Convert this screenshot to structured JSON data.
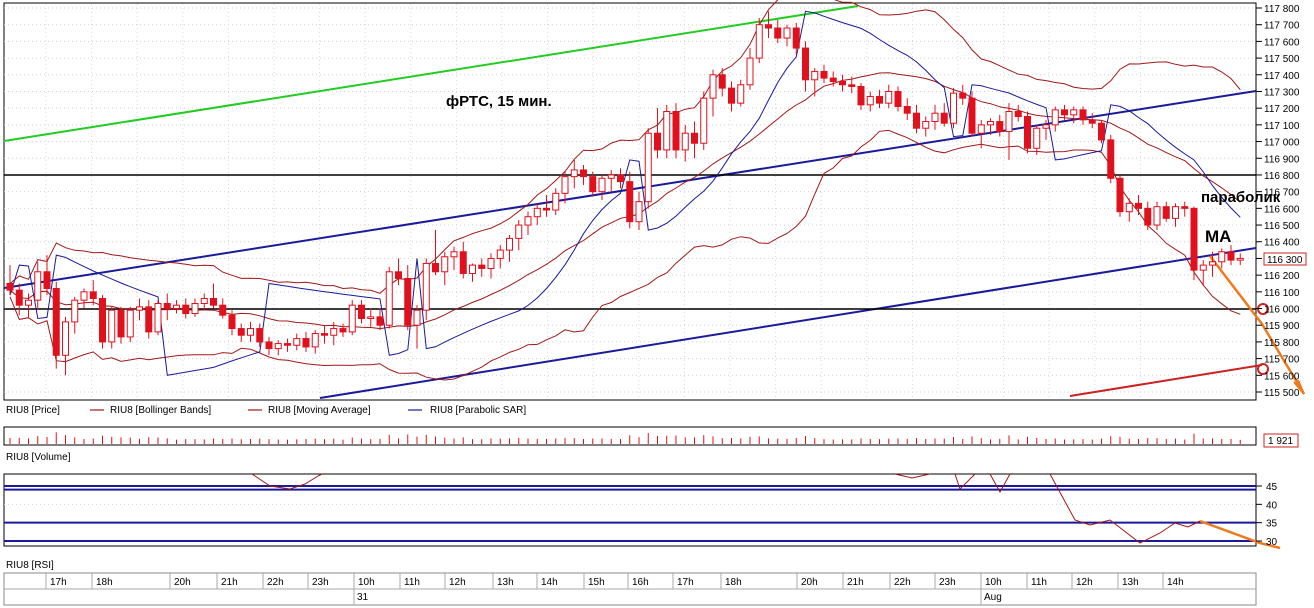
{
  "chart_data": [
    {
      "type": "candlestick",
      "annotations": {
        "title": "фРТС, 15 мин.",
        "sar_label": "параболик",
        "ma_label": "МА"
      },
      "legend": [
        {
          "name": "RIU8 [Price]",
          "color": "#e0101c"
        },
        {
          "name": "RIU8 [Bollinger Bands]",
          "color": "#a01818"
        },
        {
          "name": "RIU8 [Moving Average]",
          "color": "#a01818"
        },
        {
          "name": "RIU8 [Parabolic SAR]",
          "color": "#1a1a9a"
        }
      ],
      "y_axis": {
        "ticks": [
          "117 800",
          "117 700",
          "117 600",
          "117 500",
          "117 400",
          "117 300",
          "117 200",
          "117 100",
          "117 000",
          "116 900",
          "116 800",
          "116 700",
          "116 600",
          "116 500",
          "116 400",
          "116 300",
          "116 200",
          "116 100",
          "116 000",
          "115 900",
          "115 800",
          "115 700",
          "115 600",
          "115 500"
        ],
        "ylim": [
          115500,
          117800
        ],
        "last_price": "116 300"
      },
      "horizontal_levels": [
        116800,
        116000
      ],
      "candles": [
        [
          116150,
          116260,
          116080,
          116110
        ],
        [
          116110,
          116150,
          115960,
          116020
        ],
        [
          116020,
          116090,
          115940,
          116050
        ],
        [
          116050,
          116280,
          115990,
          116220
        ],
        [
          116220,
          116320,
          116080,
          116120
        ],
        [
          116120,
          116160,
          115640,
          115720
        ],
        [
          115720,
          115950,
          115600,
          115920
        ],
        [
          115920,
          116070,
          115850,
          116050
        ],
        [
          116050,
          116120,
          116000,
          116100
        ],
        [
          116100,
          116170,
          116020,
          116060
        ],
        [
          116060,
          116080,
          115760,
          115800
        ],
        [
          115800,
          116010,
          115760,
          115990
        ],
        [
          115990,
          116010,
          115790,
          115830
        ],
        [
          115830,
          116010,
          115800,
          115990
        ],
        [
          115990,
          116060,
          115930,
          116010
        ],
        [
          116010,
          116050,
          115820,
          115860
        ],
        [
          115860,
          116050,
          115840,
          116030
        ],
        [
          116030,
          116090,
          115930,
          116000
        ],
        [
          116000,
          116050,
          115970,
          116020
        ],
        [
          116020,
          116060,
          115940,
          115970
        ],
        [
          115970,
          116060,
          115950,
          116030
        ],
        [
          116030,
          116090,
          115990,
          116060
        ],
        [
          116060,
          116150,
          116000,
          116020
        ],
        [
          116020,
          116060,
          115940,
          115960
        ],
        [
          115960,
          115990,
          115840,
          115880
        ],
        [
          115880,
          115910,
          115800,
          115840
        ],
        [
          115840,
          115920,
          115800,
          115880
        ],
        [
          115880,
          115910,
          115770,
          115800
        ],
        [
          115800,
          115830,
          115720,
          115760
        ],
        [
          115760,
          115810,
          115720,
          115790
        ],
        [
          115790,
          115820,
          115740,
          115780
        ],
        [
          115780,
          115850,
          115750,
          115820
        ],
        [
          115820,
          115860,
          115740,
          115770
        ],
        [
          115770,
          115870,
          115730,
          115850
        ],
        [
          115850,
          115900,
          115790,
          115840
        ],
        [
          115840,
          115920,
          115780,
          115880
        ],
        [
          115880,
          115910,
          115830,
          115860
        ],
        [
          115860,
          116050,
          115840,
          116020
        ],
        [
          116020,
          116050,
          115910,
          115940
        ],
        [
          115940,
          116000,
          115890,
          115950
        ],
        [
          115950,
          116000,
          115870,
          115900
        ],
        [
          115900,
          116250,
          115880,
          116220
        ],
        [
          116220,
          116300,
          116140,
          116180
        ],
        [
          116180,
          116260,
          115870,
          115900
        ],
        [
          115900,
          116020,
          115760,
          115990
        ],
        [
          115990,
          116300,
          115930,
          116270
        ],
        [
          116270,
          116470,
          116200,
          116220
        ],
        [
          116220,
          116340,
          116140,
          116310
        ],
        [
          116310,
          116370,
          116230,
          116340
        ],
        [
          116340,
          116400,
          116180,
          116210
        ],
        [
          116210,
          116270,
          116160,
          116260
        ],
        [
          116260,
          116300,
          116190,
          116240
        ],
        [
          116240,
          116330,
          116180,
          116300
        ],
        [
          116300,
          116380,
          116240,
          116350
        ],
        [
          116350,
          116440,
          116280,
          116420
        ],
        [
          116420,
          116530,
          116350,
          116500
        ],
        [
          116500,
          116580,
          116440,
          116550
        ],
        [
          116550,
          116630,
          116500,
          116600
        ],
        [
          116600,
          116680,
          116550,
          116590
        ],
        [
          116590,
          116720,
          116560,
          116690
        ],
        [
          116690,
          116820,
          116630,
          116790
        ],
        [
          116790,
          116890,
          116720,
          116830
        ],
        [
          116830,
          116860,
          116740,
          116790
        ],
        [
          116790,
          116820,
          116670,
          116700
        ],
        [
          116700,
          116800,
          116650,
          116780
        ],
        [
          116780,
          116830,
          116700,
          116800
        ],
        [
          116800,
          116840,
          116720,
          116760
        ],
        [
          116760,
          116820,
          116480,
          116520
        ],
        [
          116520,
          116700,
          116470,
          116640
        ],
        [
          116640,
          117080,
          116600,
          117050
        ],
        [
          117050,
          117200,
          116900,
          116950
        ],
        [
          116950,
          117220,
          116900,
          117180
        ],
        [
          117180,
          117230,
          116900,
          116950
        ],
        [
          116950,
          117100,
          116880,
          117050
        ],
        [
          117050,
          117120,
          116900,
          116990
        ],
        [
          116990,
          117300,
          116950,
          117260
        ],
        [
          117260,
          117430,
          117150,
          117400
        ],
        [
          117400,
          117440,
          117270,
          117320
        ],
        [
          117320,
          117360,
          117180,
          117230
        ],
        [
          117230,
          117370,
          117210,
          117340
        ],
        [
          117340,
          117560,
          117310,
          117500
        ],
        [
          117500,
          117740,
          117470,
          117700
        ],
        [
          117700,
          117780,
          117620,
          117680
        ],
        [
          117680,
          117730,
          117590,
          117620
        ],
        [
          117620,
          117700,
          117570,
          117680
        ],
        [
          117680,
          117710,
          117520,
          117560
        ],
        [
          117560,
          117600,
          117300,
          117370
        ],
        [
          117370,
          117440,
          117270,
          117420
        ],
        [
          117420,
          117460,
          117350,
          117380
        ],
        [
          117380,
          117420,
          117330,
          117360
        ],
        [
          117360,
          117400,
          117300,
          117340
        ],
        [
          117340,
          117390,
          117290,
          117330
        ],
        [
          117330,
          117350,
          117190,
          117220
        ],
        [
          117220,
          117300,
          117180,
          117270
        ],
        [
          117270,
          117310,
          117200,
          117230
        ],
        [
          117230,
          117340,
          117200,
          117300
        ],
        [
          117300,
          117330,
          117180,
          117210
        ],
        [
          117210,
          117260,
          117130,
          117170
        ],
        [
          117170,
          117220,
          117050,
          117080
        ],
        [
          117080,
          117150,
          117030,
          117120
        ],
        [
          117120,
          117220,
          117070,
          117170
        ],
        [
          117170,
          117230,
          117090,
          117110
        ],
        [
          117110,
          117320,
          117080,
          117290
        ],
        [
          117290,
          117340,
          117220,
          117260
        ],
        [
          117260,
          117300,
          117030,
          117050
        ],
        [
          117050,
          117130,
          116960,
          117100
        ],
        [
          117100,
          117140,
          117040,
          117120
        ],
        [
          117120,
          117160,
          117030,
          117060
        ],
        [
          117060,
          117230,
          116890,
          117180
        ],
        [
          117180,
          117220,
          117120,
          117150
        ],
        [
          117150,
          117180,
          116930,
          116960
        ],
        [
          116960,
          117100,
          116920,
          117080
        ],
        [
          117080,
          117130,
          117010,
          117100
        ],
        [
          117100,
          117210,
          117060,
          117190
        ],
        [
          117190,
          117220,
          117130,
          117160
        ],
        [
          117160,
          117210,
          117110,
          117190
        ],
        [
          117190,
          117210,
          117100,
          117130
        ],
        [
          117130,
          117170,
          117080,
          117110
        ],
        [
          117110,
          117130,
          116990,
          117010
        ],
        [
          117010,
          117040,
          116750,
          116780
        ],
        [
          116780,
          116800,
          116550,
          116580
        ],
        [
          116580,
          116660,
          116520,
          116630
        ],
        [
          116630,
          116680,
          116560,
          116600
        ],
        [
          116600,
          116640,
          116470,
          116500
        ],
        [
          116500,
          116640,
          116470,
          116610
        ],
        [
          116610,
          116640,
          116520,
          116540
        ],
        [
          116540,
          116630,
          116490,
          116610
        ],
        [
          116610,
          116640,
          116550,
          116600
        ],
        [
          116600,
          116610,
          116170,
          116230
        ],
        [
          116230,
          116290,
          116140,
          116260
        ],
        [
          116260,
          116340,
          116190,
          116280
        ],
        [
          116280,
          116360,
          116240,
          116340
        ],
        [
          116340,
          116380,
          116260,
          116290
        ],
        [
          116290,
          116330,
          116260,
          116300
        ]
      ]
    },
    {
      "type": "bar",
      "legend_label": "RIU8 [Volume]",
      "last_value": "1 921"
    },
    {
      "type": "line",
      "legend_label": "RIU8 [RSI]",
      "y_axis": {
        "ticks": [
          "45",
          "40",
          "35",
          "30"
        ],
        "ylim": [
          28,
          48
        ]
      },
      "x_labels": [
        "17h",
        "18h",
        "20h",
        "21h",
        "22h",
        "23h",
        "10h",
        "11h",
        "12h",
        "13h",
        "14h",
        "15h",
        "16h",
        "17h",
        "18h",
        "20h",
        "21h",
        "22h",
        "23h",
        "10h",
        "11h",
        "12h",
        "13h",
        "14h"
      ],
      "date_labels": [
        "31",
        "Aug"
      ],
      "horizontal_levels": [
        45,
        44,
        35,
        30
      ]
    }
  ]
}
